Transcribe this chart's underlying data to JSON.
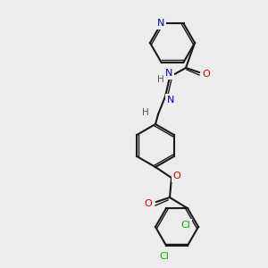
{
  "bg_color": "#ececec",
  "bond_color": "#1a1a1a",
  "N_color": "#0000cc",
  "O_color": "#cc0000",
  "Cl_color": "#00aa00",
  "H_color": "#555555",
  "lw": 1.5,
  "dlw": 1.0,
  "fontsize": 7.5,
  "atoms": {
    "N1_label": "N",
    "N2_label": "N",
    "O1_label": "O",
    "O2_label": "O",
    "Cl1_label": "Cl",
    "Cl2_label": "Cl",
    "H1_label": "H",
    "H2_label": "H"
  }
}
